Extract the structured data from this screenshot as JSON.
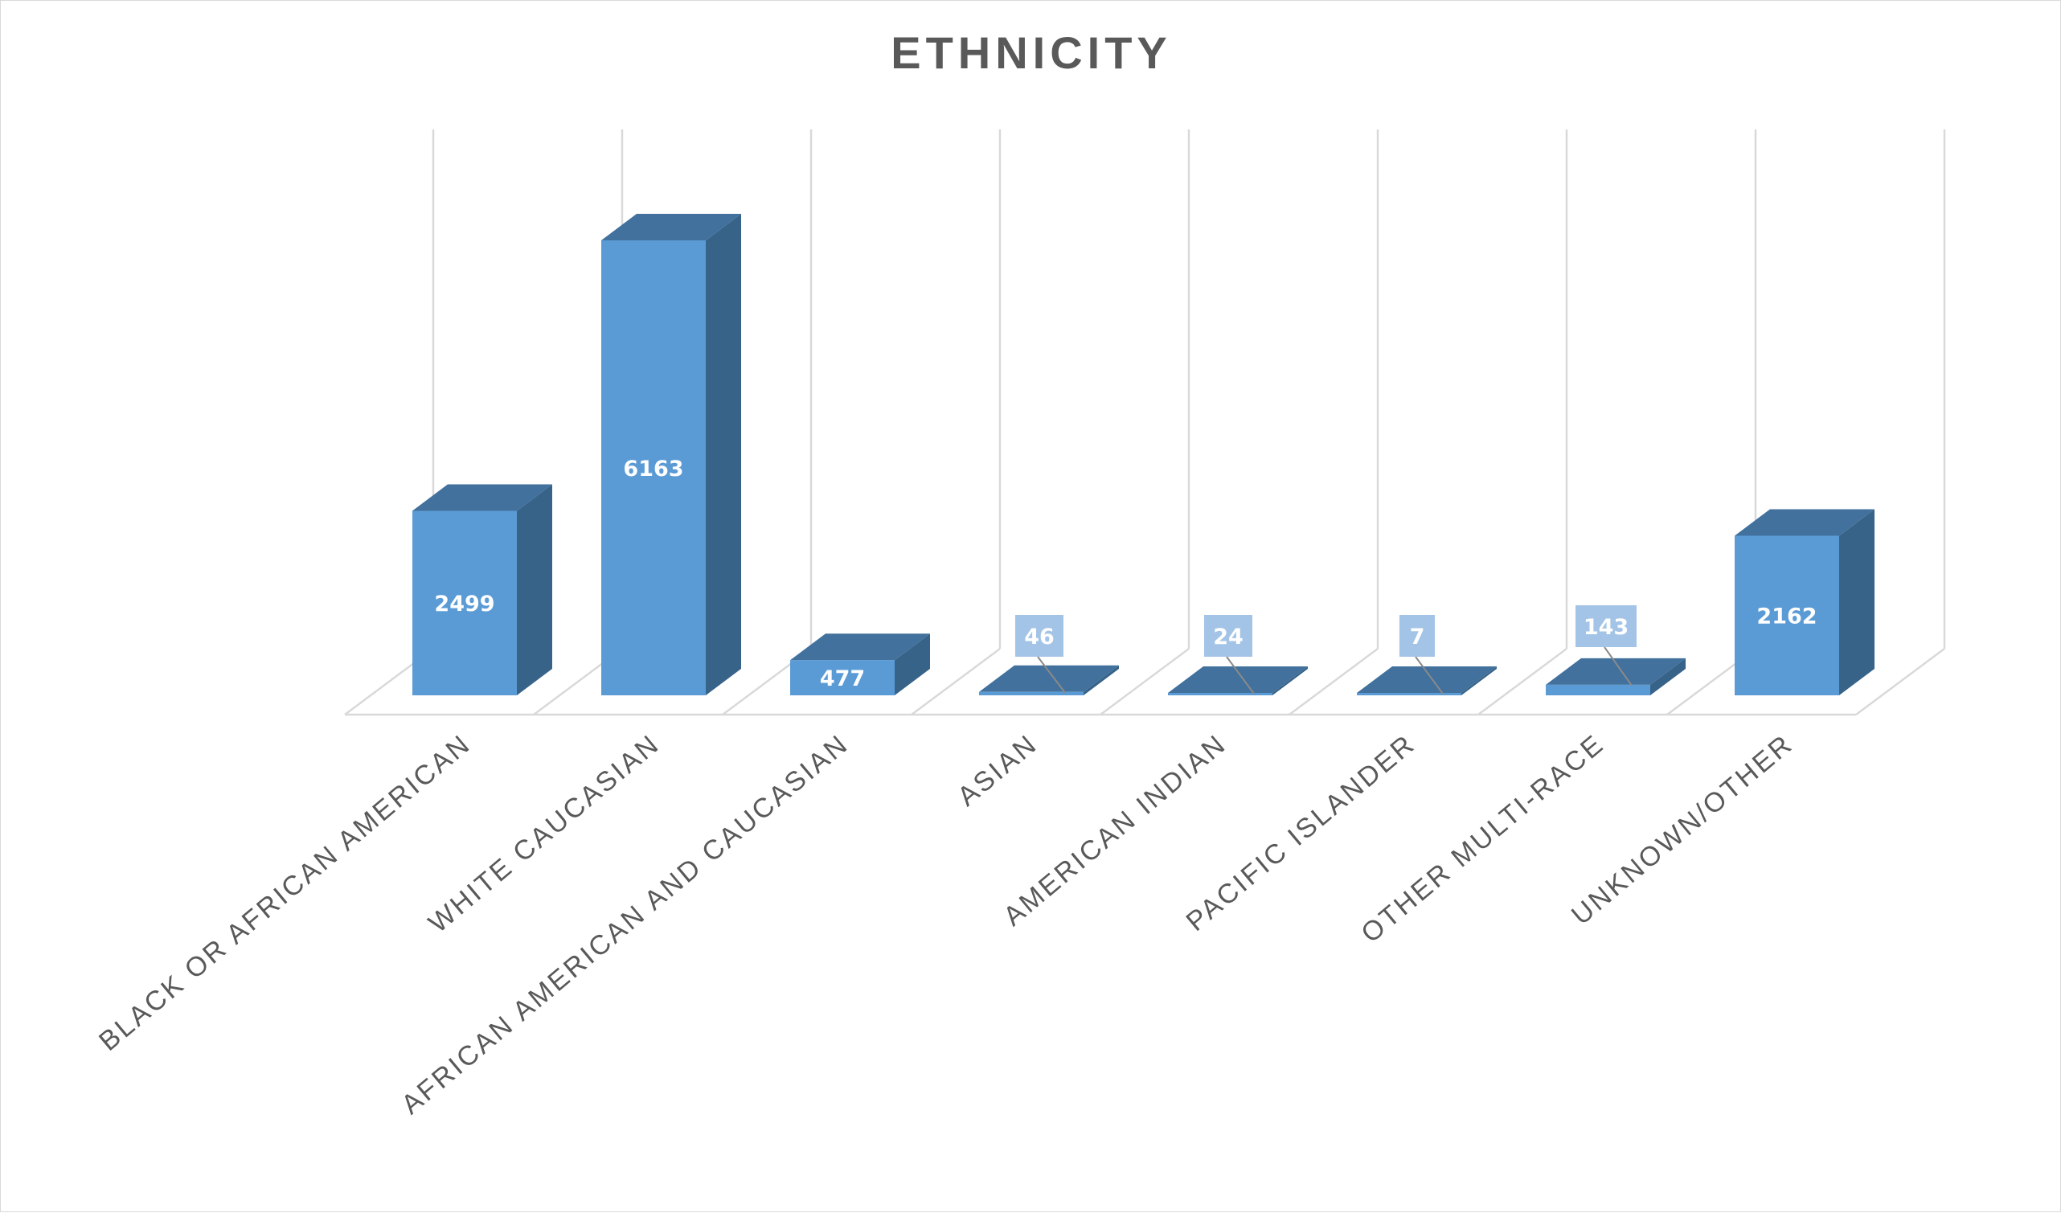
{
  "chart_data": {
    "type": "bar",
    "title": "ETHNICITY",
    "categories": [
      "BLACK OR AFRICAN AMERICAN",
      "WHITE CAUCASIAN",
      "AFRICAN AMERICAN AND CAUCASIAN",
      "ASIAN",
      "AMERICAN INDIAN",
      "PACIFIC ISLANDER",
      "OTHER MULTI-RACE",
      "UNKNOWN/OTHER"
    ],
    "values": [
      2499,
      6163,
      477,
      46,
      24,
      7,
      143,
      2162
    ],
    "value_labels": [
      "2499",
      "6163",
      "477",
      "46",
      "24",
      "7",
      "143",
      "2162"
    ],
    "xlabel": "",
    "ylabel": "",
    "three_d": true,
    "grid": true,
    "legend": "none",
    "colors": {
      "bar_front": "#5b9bd5",
      "bar_top": "#41719c",
      "bar_side": "#386389",
      "callout_fill": "#a3c4e6",
      "grid": "#d9d9d9",
      "text": "#595959"
    }
  }
}
